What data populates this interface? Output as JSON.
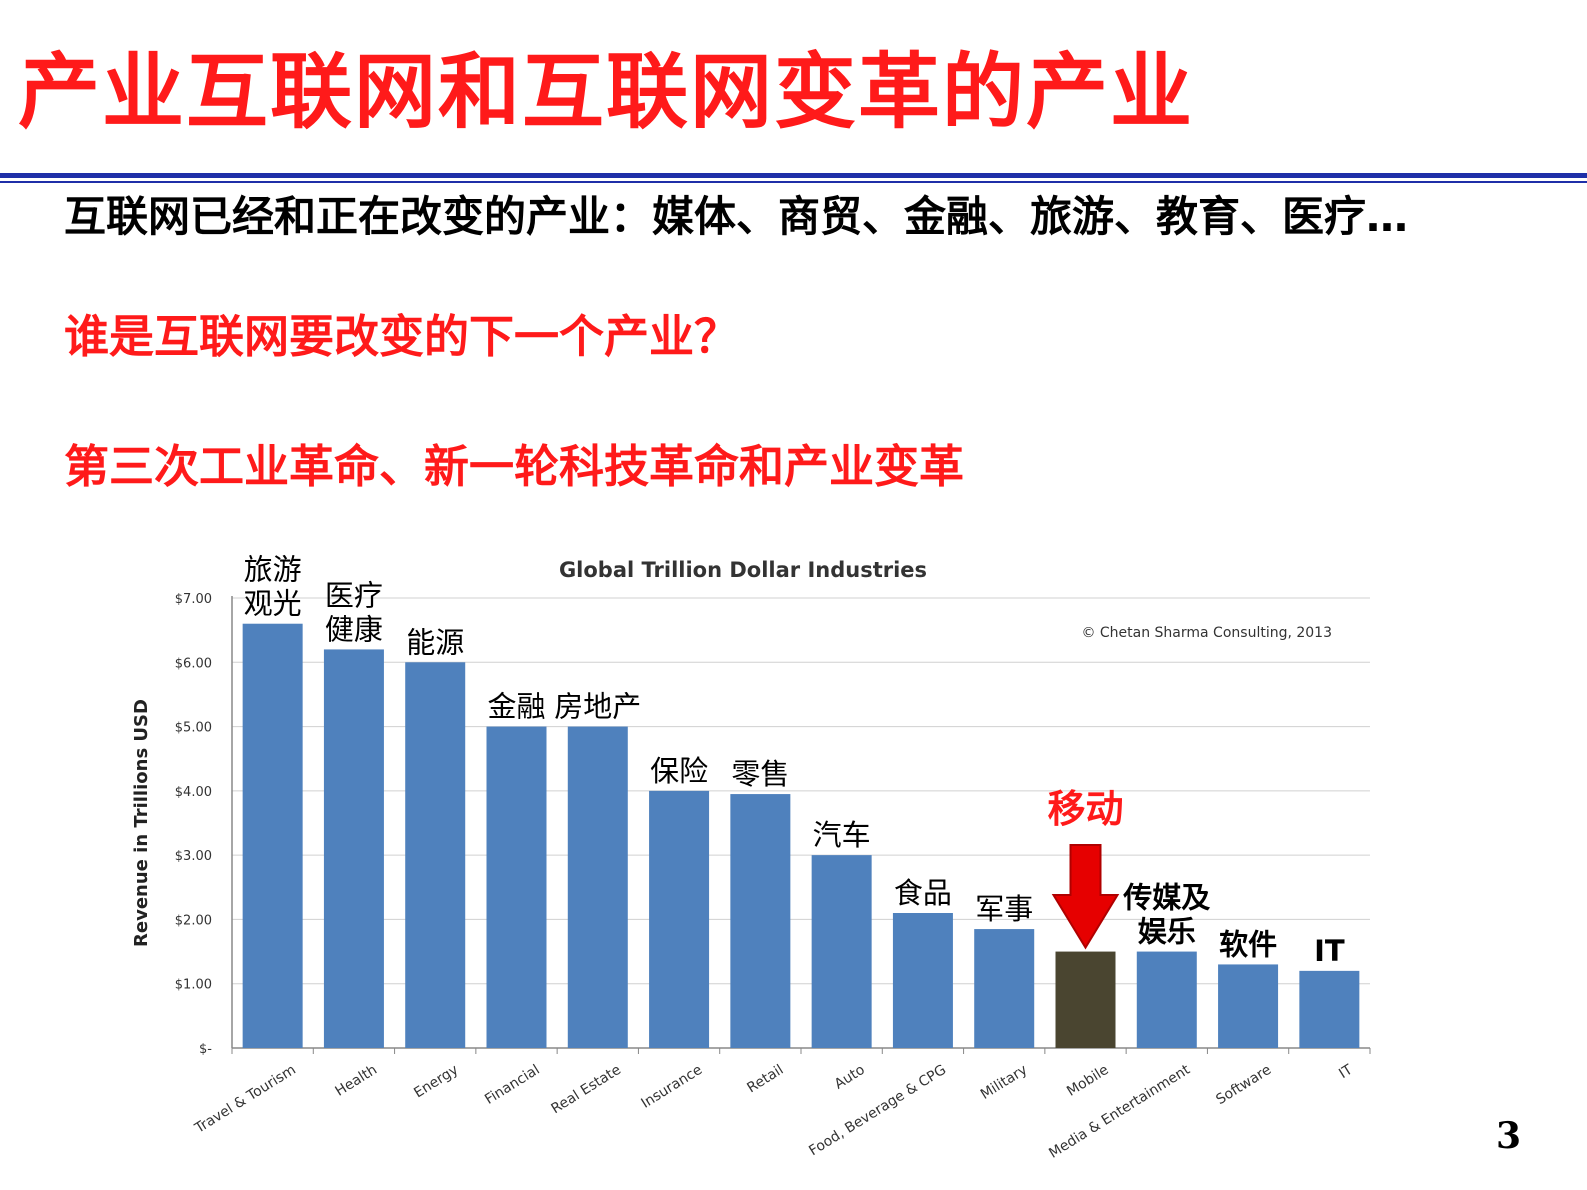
{
  "slide": {
    "title": "产业互联网和互联网变革的产业",
    "line1": "互联网已经和正在改变的产业：媒体、商贸、金融、旅游、教育、医疗…",
    "line2": "谁是互联网要改变的下一个产业？",
    "line3": "第三次工业革命、新一轮科技革命和产业变革",
    "page_number": "3"
  },
  "colors": {
    "title_red": "#ff1a1a",
    "rule_blue": "#1f2fa8",
    "bar_blue": "#4f81bd",
    "bar_highlight": "#4a4530",
    "arrow_red": "#e60000"
  },
  "chart_data": {
    "type": "bar",
    "title": "Global Trillion Dollar Industries",
    "copyright": "© Chetan Sharma Consulting, 2013",
    "ylabel": "Revenue in Trillions USD",
    "ylim": [
      0,
      7
    ],
    "yticks": [
      "$-",
      "$1.00",
      "$2.00",
      "$3.00",
      "$4.00",
      "$5.00",
      "$6.00",
      "$7.00"
    ],
    "grid": true,
    "categories": [
      "Travel & Tourism",
      "Health",
      "Energy",
      "Financial",
      "Real Estate",
      "Insurance",
      "Retail",
      "Auto",
      "Food, Beverage & CPG",
      "Military",
      "Mobile",
      "Media & Entertainment",
      "Software",
      "IT"
    ],
    "values": [
      6.6,
      6.2,
      6.0,
      5.0,
      5.0,
      4.0,
      3.95,
      3.0,
      2.1,
      1.85,
      1.5,
      1.5,
      1.3,
      1.2
    ],
    "highlight": "Mobile",
    "annotations_cn": [
      "旅游\n观光",
      "医疗\n健康",
      "能源",
      "金融",
      "房地产",
      "保险",
      "零售",
      "汽车",
      "食品",
      "军事",
      "移动",
      "传媒及\n娱乐",
      "软件",
      "IT"
    ]
  }
}
